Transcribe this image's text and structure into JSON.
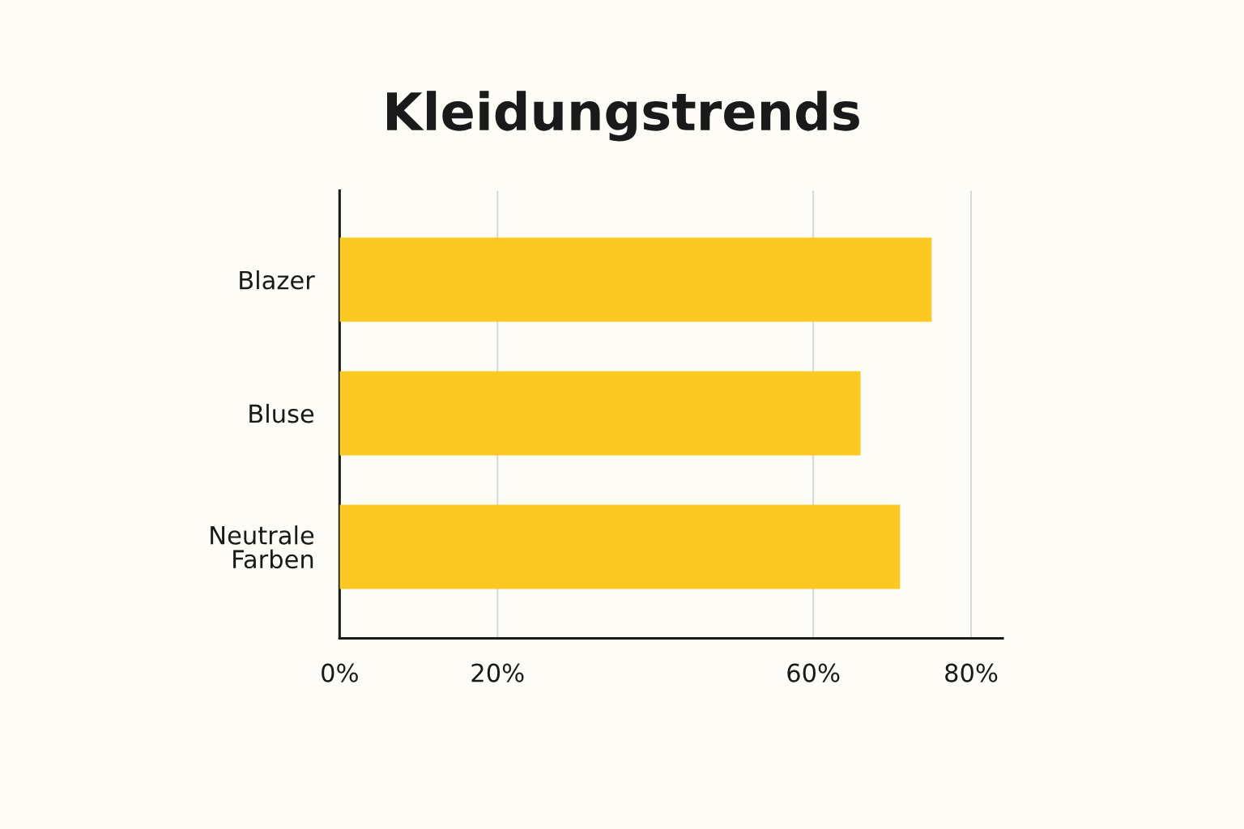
{
  "chart_data": {
    "type": "bar",
    "orientation": "horizontal",
    "title": "Kleidungstrends",
    "categories": [
      "Blazer",
      "Bluse",
      "Neutrale\nFarben"
    ],
    "values": [
      75,
      66,
      71
    ],
    "color": "#fcc822",
    "xlim": [
      0,
      84
    ],
    "xticks": [
      {
        "value": 0,
        "label": "0%"
      },
      {
        "value": 20,
        "label": "20%"
      },
      {
        "value": 60,
        "label": "60%"
      },
      {
        "value": 80,
        "label": "80%"
      }
    ],
    "grid": "x"
  }
}
